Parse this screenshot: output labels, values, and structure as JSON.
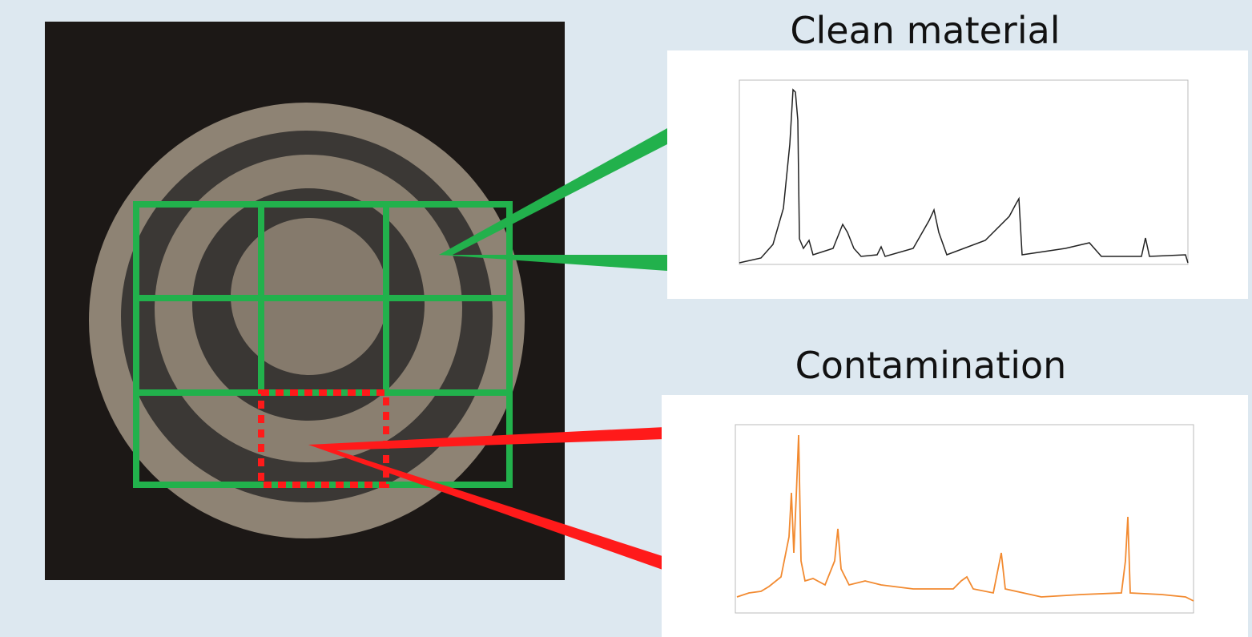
{
  "panels": [
    {
      "title": "Clean material"
    },
    {
      "title": "Contamination"
    }
  ]
}
